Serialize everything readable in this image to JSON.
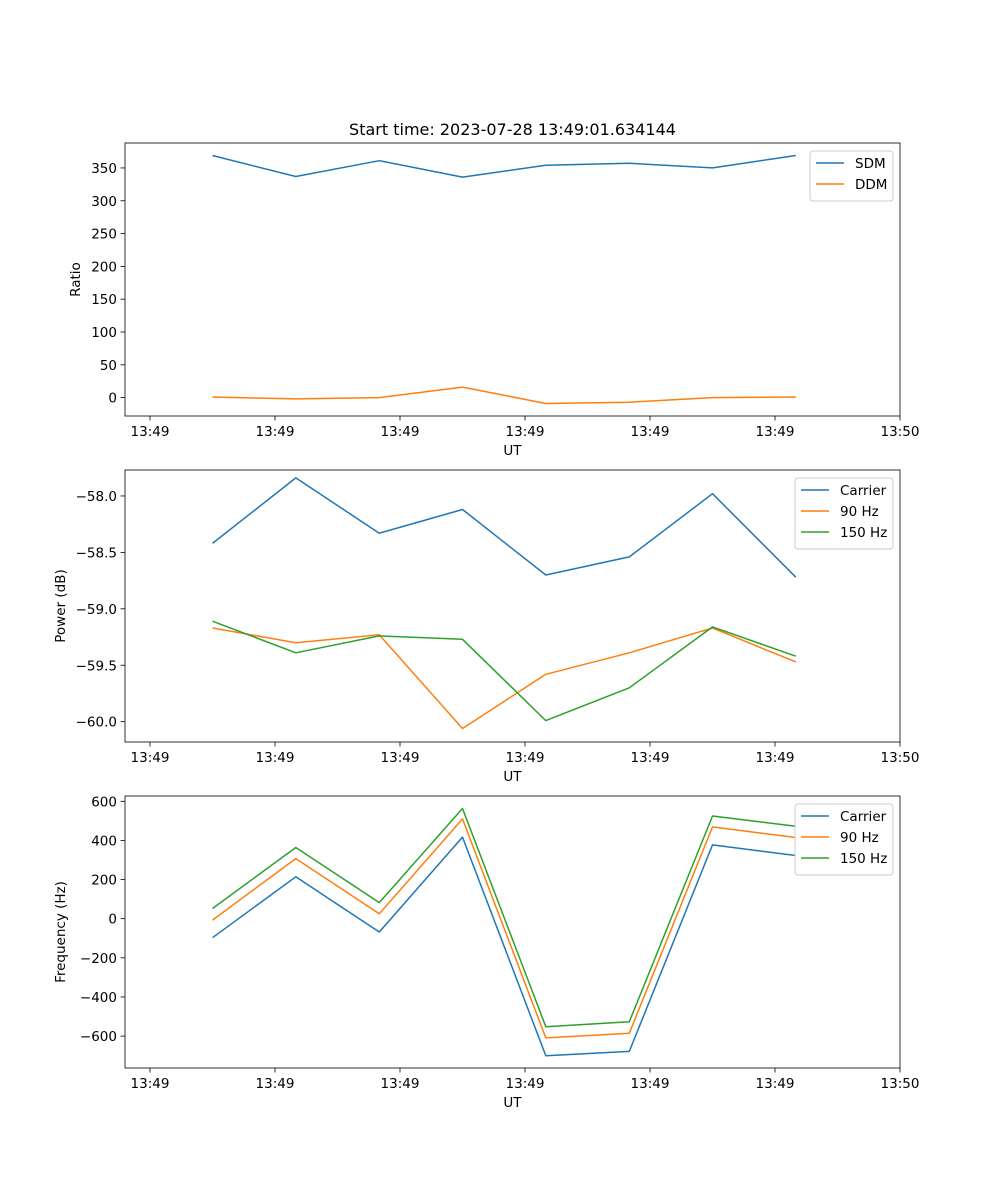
{
  "chart_data": [
    {
      "type": "line",
      "title": "Start time: 2023-07-28 13:49:01.634144",
      "xlabel": "UT",
      "ylabel": "Ratio",
      "x": [
        0.25,
        0.583,
        0.917,
        1.25,
        1.583,
        1.917,
        2.25,
        2.583
      ],
      "xlim": [
        -0.1,
        3.0
      ],
      "xticks": [
        0,
        0.5,
        1.0,
        1.5,
        2.0,
        2.5,
        3.0
      ],
      "xtick_labels": [
        "13:49",
        "13:49",
        "13:49",
        "13:49",
        "13:49",
        "13:49",
        "13:50"
      ],
      "ylim": [
        -28,
        388
      ],
      "yticks": [
        0,
        50,
        100,
        150,
        200,
        250,
        300,
        350
      ],
      "ytick_labels": [
        "0",
        "50",
        "100",
        "150",
        "200",
        "250",
        "300",
        "350"
      ],
      "legend": "top-right",
      "series": [
        {
          "name": "SDM",
          "color": "#1f77b4",
          "values": [
            369,
            337,
            361,
            336,
            354,
            357,
            350,
            369
          ]
        },
        {
          "name": "DDM",
          "color": "#ff7f0e",
          "values": [
            1,
            -2,
            0,
            16,
            -9,
            -7,
            0,
            1
          ]
        }
      ]
    },
    {
      "type": "line",
      "title": "",
      "xlabel": "UT",
      "ylabel": "Power (dB)",
      "x": [
        0.25,
        0.583,
        0.917,
        1.25,
        1.583,
        1.917,
        2.25,
        2.583
      ],
      "xlim": [
        -0.1,
        3.0
      ],
      "xticks": [
        0,
        0.5,
        1.0,
        1.5,
        2.0,
        2.5,
        3.0
      ],
      "xtick_labels": [
        "13:49",
        "13:49",
        "13:49",
        "13:49",
        "13:49",
        "13:49",
        "13:50"
      ],
      "ylim": [
        -60.18,
        -57.77
      ],
      "yticks": [
        -60.0,
        -59.5,
        -59.0,
        -58.5,
        -58.0
      ],
      "ytick_labels": [
        "−60.0",
        "−59.5",
        "−59.0",
        "−58.5",
        "−58.0"
      ],
      "legend": "top-right",
      "series": [
        {
          "name": "Carrier",
          "color": "#1f77b4",
          "values": [
            -58.42,
            -57.84,
            -58.33,
            -58.12,
            -58.7,
            -58.54,
            -57.98,
            -58.72
          ]
        },
        {
          "name": "90 Hz",
          "color": "#ff7f0e",
          "values": [
            -59.17,
            -59.3,
            -59.23,
            -60.06,
            -59.58,
            -59.39,
            -59.17,
            -59.47
          ]
        },
        {
          "name": "150 Hz",
          "color": "#2ca02c",
          "values": [
            -59.11,
            -59.39,
            -59.24,
            -59.27,
            -59.99,
            -59.7,
            -59.16,
            -59.42
          ]
        }
      ]
    },
    {
      "type": "line",
      "title": "",
      "xlabel": "UT",
      "ylabel": "Frequency (Hz)",
      "x": [
        0.25,
        0.583,
        0.917,
        1.25,
        1.583,
        1.917,
        2.25,
        2.583
      ],
      "xlim": [
        -0.1,
        3.0
      ],
      "xticks": [
        0,
        0.5,
        1.0,
        1.5,
        2.0,
        2.5,
        3.0
      ],
      "xtick_labels": [
        "13:49",
        "13:49",
        "13:49",
        "13:49",
        "13:49",
        "13:49",
        "13:50"
      ],
      "ylim": [
        -763,
        627
      ],
      "yticks": [
        -600,
        -400,
        -200,
        0,
        200,
        400,
        600
      ],
      "ytick_labels": [
        "−600",
        "−400",
        "−200",
        "0",
        "200",
        "400",
        "600"
      ],
      "legend": "top-right",
      "series": [
        {
          "name": "Carrier",
          "color": "#1f77b4",
          "values": [
            -97,
            214,
            -68,
            417,
            -700,
            -678,
            377,
            323
          ]
        },
        {
          "name": "90 Hz",
          "color": "#ff7f0e",
          "values": [
            -7,
            307,
            25,
            510,
            -609,
            -585,
            469,
            415
          ]
        },
        {
          "name": "150 Hz",
          "color": "#2ca02c",
          "values": [
            52,
            364,
            82,
            563,
            -552,
            -527,
            525,
            472
          ]
        }
      ]
    }
  ]
}
